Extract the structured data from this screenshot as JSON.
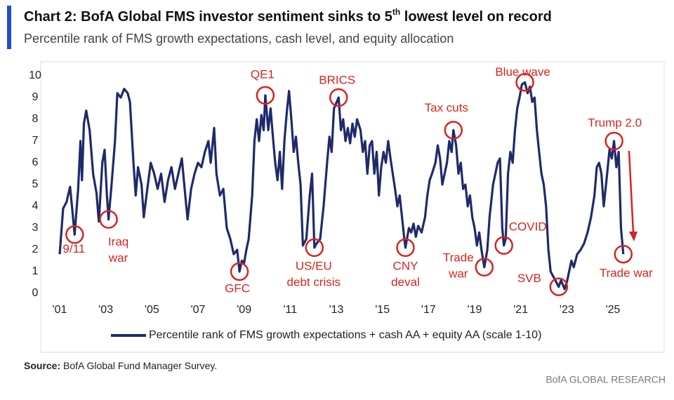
{
  "chart_data": {
    "type": "line",
    "title": "Chart 2: BofA Global FMS investor sentiment sinks to 5",
    "title_sup": "th",
    "title_end": " lowest level on record",
    "subtitle": "Percentile rank of FMS growth expectations, cash level, and equity allocation",
    "source_label": "Source:",
    "source_text": " BofA Global Fund Manager Survey.",
    "brand": "BofA GLOBAL RESEARCH",
    "xlim": [
      2000.5,
      2027.2
    ],
    "ylim": [
      0,
      10
    ],
    "xticks": [
      {
        "value": 2001,
        "label": "'01"
      },
      {
        "value": 2003,
        "label": "'03"
      },
      {
        "value": 2005,
        "label": "'05"
      },
      {
        "value": 2007,
        "label": "'07"
      },
      {
        "value": 2009,
        "label": "'09"
      },
      {
        "value": 2011,
        "label": "'11"
      },
      {
        "value": 2013,
        "label": "'13"
      },
      {
        "value": 2015,
        "label": "'15"
      },
      {
        "value": 2017,
        "label": "'17"
      },
      {
        "value": 2019,
        "label": "'19"
      },
      {
        "value": 2021,
        "label": "'21"
      },
      {
        "value": 2023,
        "label": "'23"
      },
      {
        "value": 2025,
        "label": "'25"
      }
    ],
    "yticks": [
      0,
      1,
      2,
      3,
      4,
      5,
      6,
      7,
      8,
      9,
      10
    ],
    "grid": false,
    "legend": "bottom",
    "x": [
      2001.0,
      2001.15,
      2001.3,
      2001.45,
      2001.55,
      2001.65,
      2001.8,
      2001.9,
      2001.97,
      2002.05,
      2002.15,
      2002.3,
      2002.45,
      2002.6,
      2002.7,
      2002.85,
      2002.95,
      2003.05,
      2003.12,
      2003.25,
      2003.4,
      2003.5,
      2003.65,
      2003.8,
      2003.95,
      2004.05,
      2004.2,
      2004.3,
      2004.4,
      2004.55,
      2004.65,
      2004.8,
      2004.95,
      2005.1,
      2005.25,
      2005.4,
      2005.55,
      2005.7,
      2005.85,
      2006.0,
      2006.15,
      2006.3,
      2006.45,
      2006.55,
      2006.7,
      2006.85,
      2007.0,
      2007.15,
      2007.3,
      2007.45,
      2007.55,
      2007.7,
      2007.8,
      2007.95,
      2008.1,
      2008.25,
      2008.4,
      2008.55,
      2008.7,
      2008.8,
      2008.9,
      2009.0,
      2009.1,
      2009.2,
      2009.35,
      2009.45,
      2009.55,
      2009.65,
      2009.75,
      2009.85,
      2009.92,
      2010.05,
      2010.15,
      2010.25,
      2010.35,
      2010.45,
      2010.55,
      2010.65,
      2010.75,
      2010.85,
      2010.95,
      2011.05,
      2011.15,
      2011.25,
      2011.35,
      2011.45,
      2011.55,
      2011.7,
      2011.85,
      2011.95,
      2012.05,
      2012.15,
      2012.3,
      2012.45,
      2012.6,
      2012.7,
      2012.8,
      2012.9,
      2013.1,
      2013.2,
      2013.3,
      2013.4,
      2013.5,
      2013.6,
      2013.7,
      2013.8,
      2013.9,
      2014.05,
      2014.15,
      2014.25,
      2014.35,
      2014.45,
      2014.55,
      2014.65,
      2014.75,
      2014.85,
      2014.95,
      2015.05,
      2015.15,
      2015.25,
      2015.35,
      2015.45,
      2015.55,
      2015.65,
      2015.75,
      2015.85,
      2015.95,
      2016.0,
      2016.15,
      2016.25,
      2016.35,
      2016.45,
      2016.55,
      2016.7,
      2016.85,
      2016.95,
      2017.05,
      2017.15,
      2017.3,
      2017.4,
      2017.5,
      2017.6,
      2017.7,
      2017.8,
      2017.9,
      2018.0,
      2018.08,
      2018.2,
      2018.3,
      2018.4,
      2018.5,
      2018.6,
      2018.7,
      2018.8,
      2018.9,
      2019.0,
      2019.1,
      2019.2,
      2019.3,
      2019.42,
      2019.55,
      2019.65,
      2019.8,
      2019.9,
      2020.0,
      2020.1,
      2020.2,
      2020.27,
      2020.35,
      2020.45,
      2020.55,
      2020.65,
      2020.75,
      2020.85,
      2020.95,
      2021.05,
      2021.18,
      2021.3,
      2021.4,
      2021.5,
      2021.6,
      2021.7,
      2021.8,
      2021.9,
      2022.0,
      2022.1,
      2022.2,
      2022.3,
      2022.4,
      2022.5,
      2022.65,
      2022.75,
      2022.9,
      2023.0,
      2023.1,
      2023.2,
      2023.3,
      2023.45,
      2023.6,
      2023.75,
      2023.9,
      2024.05,
      2024.2,
      2024.3,
      2024.4,
      2024.5,
      2024.6,
      2024.75,
      2024.85,
      2024.95,
      2025.05,
      2025.15,
      2025.25,
      2025.35,
      2025.45
    ],
    "series": [
      {
        "name": "Percentile rank of FMS growth expectations + cash AA + equity AA (scale 1-10)",
        "color": "#1f2a6b",
        "values": [
          1.8,
          3.9,
          4.2,
          4.9,
          3.8,
          2.7,
          4.8,
          7.0,
          5.2,
          7.8,
          8.4,
          7.5,
          5.5,
          4.6,
          3.3,
          6.0,
          6.6,
          4.5,
          3.4,
          5.0,
          7.0,
          9.2,
          9.0,
          9.4,
          9.2,
          8.8,
          6.0,
          4.5,
          5.8,
          5.0,
          3.5,
          4.8,
          6.0,
          5.5,
          4.8,
          5.5,
          4.2,
          5.2,
          5.8,
          4.8,
          5.5,
          6.2,
          4.5,
          3.4,
          4.8,
          5.5,
          6.0,
          5.8,
          6.5,
          7.0,
          6.0,
          7.6,
          5.5,
          4.5,
          4.8,
          3.0,
          2.5,
          1.8,
          2.0,
          1.0,
          1.5,
          1.4,
          2.0,
          2.5,
          4.5,
          7.0,
          8.0,
          7.0,
          8.2,
          7.5,
          9.1,
          7.5,
          8.5,
          7.2,
          6.0,
          5.2,
          6.5,
          4.8,
          7.0,
          8.3,
          9.3,
          8.0,
          6.5,
          7.2,
          6.0,
          5.0,
          2.2,
          2.5,
          4.5,
          5.5,
          2.1,
          2.3,
          2.5,
          4.0,
          6.0,
          7.2,
          6.5,
          8.5,
          9.0,
          7.5,
          8.0,
          7.0,
          7.6,
          6.9,
          7.8,
          7.2,
          8.0,
          7.5,
          6.5,
          7.0,
          5.5,
          6.8,
          7.0,
          5.5,
          6.5,
          4.5,
          5.8,
          6.5,
          6.0,
          7.0,
          6.2,
          5.5,
          4.8,
          4.0,
          4.5,
          3.5,
          2.5,
          2.1,
          3.0,
          2.8,
          3.2,
          2.6,
          3.1,
          2.8,
          3.5,
          4.5,
          5.2,
          5.5,
          6.0,
          6.8,
          6.2,
          5.0,
          5.5,
          6.0,
          7.0,
          6.5,
          7.5,
          6.8,
          5.5,
          6.0,
          4.8,
          5.0,
          4.0,
          4.5,
          3.5,
          3.0,
          2.2,
          2.8,
          2.0,
          1.2,
          2.0,
          3.5,
          5.0,
          5.5,
          6.0,
          6.2,
          3.0,
          2.2,
          2.5,
          5.5,
          6.5,
          6.0,
          7.5,
          8.5,
          9.0,
          9.6,
          9.7,
          9.2,
          9.5,
          8.8,
          9.0,
          7.5,
          6.5,
          5.5,
          5.0,
          4.0,
          2.0,
          1.0,
          0.8,
          0.6,
          0.3,
          0.6,
          0.2,
          0.5,
          1.0,
          1.5,
          1.2,
          1.8,
          2.0,
          2.3,
          2.8,
          3.5,
          4.5,
          5.8,
          6.0,
          5.5,
          4.0,
          5.5,
          6.6,
          6.2,
          7.0,
          5.8,
          6.5,
          3.0,
          1.8
        ]
      }
    ],
    "annotations": [
      {
        "lines": [
          "9/11"
        ],
        "x": 2001.65,
        "y": 2.7
      },
      {
        "lines": [
          "Iraq",
          "war"
        ],
        "x": 2003.12,
        "y": 3.4
      },
      {
        "lines": [
          "GFC"
        ],
        "x": 2008.8,
        "y": 1.0
      },
      {
        "lines": [
          "QE1"
        ],
        "x": 2009.92,
        "y": 9.1
      },
      {
        "lines": [
          "US/EU",
          "debt crisis"
        ],
        "x": 2012.05,
        "y": 2.1
      },
      {
        "lines": [
          "BRICS"
        ],
        "x": 2013.1,
        "y": 9.0
      },
      {
        "lines": [
          "CNY",
          "deval"
        ],
        "x": 2016.0,
        "y": 2.1
      },
      {
        "lines": [
          "Tax cuts"
        ],
        "x": 2018.08,
        "y": 7.5
      },
      {
        "lines": [
          "Trade",
          "war"
        ],
        "x": 2019.42,
        "y": 1.2
      },
      {
        "lines": [
          "COVID"
        ],
        "x": 2020.27,
        "y": 2.2
      },
      {
        "lines": [
          "Blue wave"
        ],
        "x": 2021.18,
        "y": 9.7
      },
      {
        "lines": [
          "SVB"
        ],
        "x": 2022.65,
        "y": 0.3
      },
      {
        "lines": [
          "Trump 2.0"
        ],
        "x": 2025.05,
        "y": 7.0
      },
      {
        "lines": [
          "Trade war"
        ],
        "x": 2025.45,
        "y": 1.8
      }
    ]
  }
}
